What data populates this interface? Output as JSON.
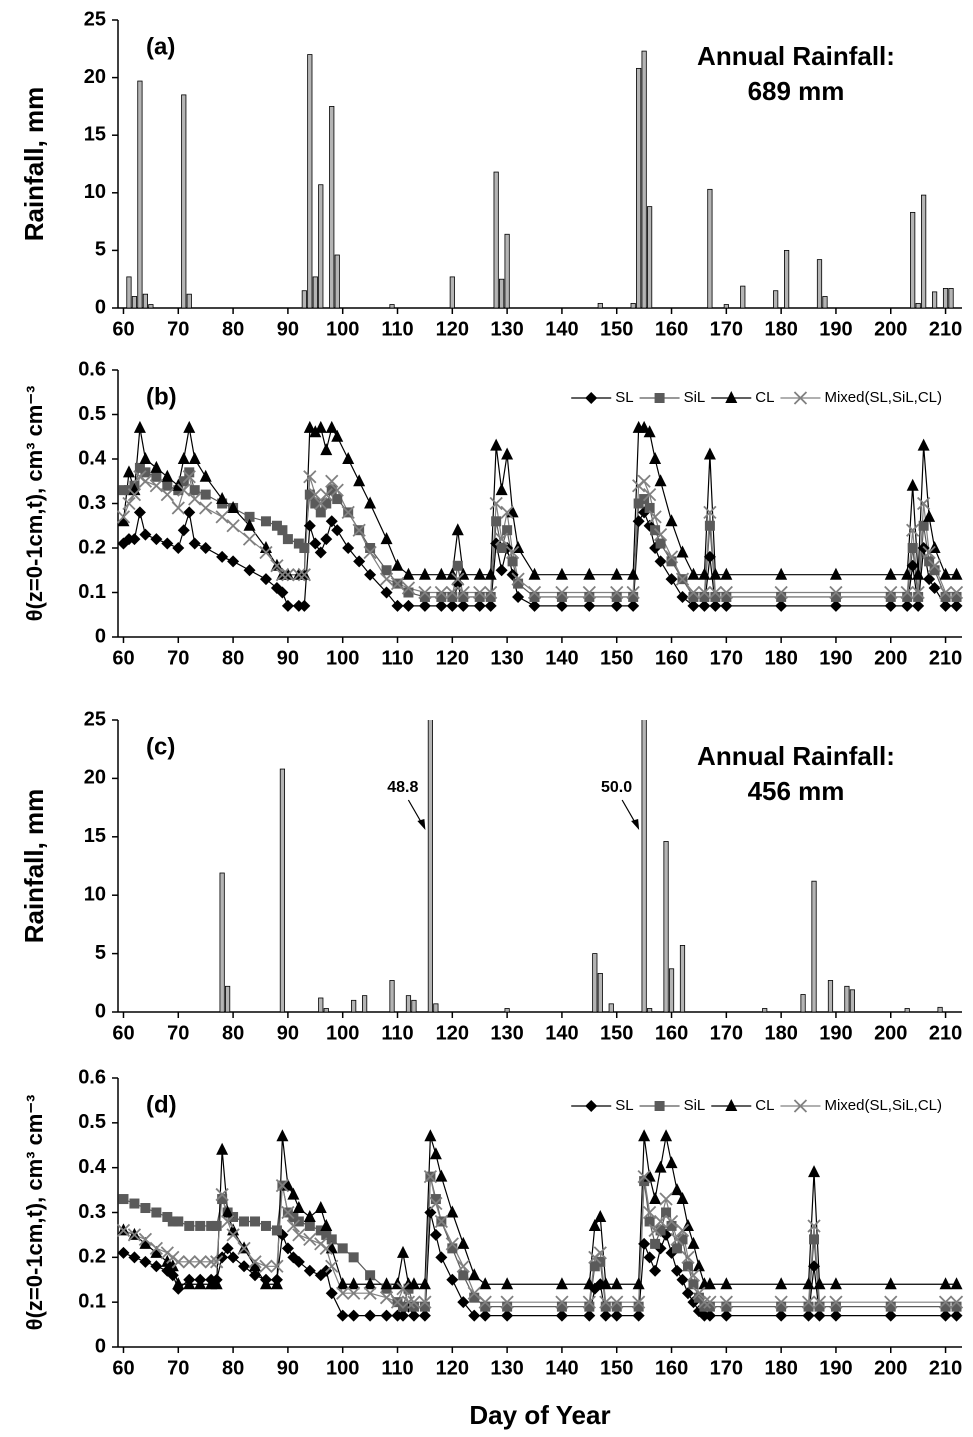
{
  "chart_data": [
    {
      "type": "bar",
      "panel_label": "(a)",
      "ylabel": "Rainfall, mm",
      "annotation": [
        "Annual Rainfall:",
        "689 mm"
      ],
      "x": [
        61,
        62,
        63,
        64,
        65,
        71,
        72,
        93,
        94,
        95,
        96,
        98,
        99,
        109,
        120,
        128,
        129,
        130,
        147,
        153,
        154,
        155,
        156,
        167,
        170,
        173,
        179,
        181,
        187,
        188,
        204,
        205,
        206,
        208,
        210,
        211
      ],
      "values": [
        2.7,
        1.0,
        19.7,
        1.2,
        0.3,
        18.5,
        1.2,
        1.5,
        22,
        2.7,
        10.7,
        17.5,
        4.6,
        0.3,
        2.7,
        11.8,
        2.5,
        6.4,
        0.4,
        0.4,
        20.8,
        22.3,
        8.8,
        10.3,
        0.3,
        1.9,
        1.5,
        5.0,
        4.2,
        1.0,
        8.3,
        0.4,
        9.8,
        1.4,
        1.7,
        1.7
      ],
      "color": "#b4b4b4",
      "xlim": [
        59,
        213
      ],
      "xticks": [
        60,
        70,
        80,
        90,
        100,
        110,
        120,
        130,
        140,
        150,
        160,
        170,
        180,
        190,
        200,
        210
      ],
      "ylim": [
        0,
        25
      ],
      "yticks": [
        0,
        5,
        10,
        15,
        20,
        25
      ]
    },
    {
      "type": "line",
      "panel_label": "(b)",
      "ylabel": "θ(z=0-1cm,t), cm³ cm⁻³",
      "legend": "upper right",
      "x": [
        60,
        61,
        62,
        63,
        64,
        66,
        68,
        70,
        71,
        72,
        73,
        75,
        78,
        80,
        83,
        86,
        88,
        89,
        90,
        92,
        93,
        94,
        95,
        96,
        97,
        98,
        99,
        101,
        103,
        105,
        108,
        110,
        112,
        115,
        118,
        120,
        121,
        122,
        125,
        127,
        128,
        129,
        130,
        131,
        132,
        135,
        140,
        145,
        150,
        153,
        154,
        155,
        156,
        157,
        158,
        160,
        162,
        164,
        166,
        167,
        168,
        170,
        180,
        190,
        200,
        203,
        204,
        205,
        206,
        207,
        208,
        210,
        212
      ],
      "series": [
        {
          "name": "SL",
          "color": "#000000",
          "marker": "diamond",
          "values": [
            0.21,
            0.22,
            0.22,
            0.28,
            0.23,
            0.22,
            0.21,
            0.2,
            0.24,
            0.28,
            0.21,
            0.2,
            0.18,
            0.17,
            0.15,
            0.13,
            0.11,
            0.1,
            0.07,
            0.07,
            0.07,
            0.25,
            0.21,
            0.19,
            0.22,
            0.26,
            0.24,
            0.2,
            0.17,
            0.14,
            0.1,
            0.07,
            0.07,
            0.07,
            0.07,
            0.07,
            0.12,
            0.07,
            0.07,
            0.07,
            0.21,
            0.15,
            0.2,
            0.14,
            0.09,
            0.07,
            0.07,
            0.07,
            0.07,
            0.07,
            0.26,
            0.28,
            0.25,
            0.2,
            0.17,
            0.13,
            0.09,
            0.07,
            0.07,
            0.18,
            0.07,
            0.07,
            0.07,
            0.07,
            0.07,
            0.07,
            0.16,
            0.07,
            0.2,
            0.13,
            0.11,
            0.07,
            0.07
          ]
        },
        {
          "name": "SiL",
          "color": "#5a5a5a",
          "marker": "square",
          "values": [
            0.33,
            0.33,
            0.34,
            0.38,
            0.37,
            0.36,
            0.34,
            0.33,
            0.35,
            0.37,
            0.33,
            0.32,
            0.3,
            0.29,
            0.27,
            0.26,
            0.25,
            0.24,
            0.22,
            0.21,
            0.2,
            0.32,
            0.3,
            0.28,
            0.3,
            0.33,
            0.31,
            0.28,
            0.24,
            0.2,
            0.15,
            0.12,
            0.1,
            0.09,
            0.09,
            0.09,
            0.16,
            0.09,
            0.09,
            0.09,
            0.26,
            0.2,
            0.24,
            0.17,
            0.12,
            0.09,
            0.09,
            0.09,
            0.09,
            0.09,
            0.3,
            0.31,
            0.29,
            0.24,
            0.21,
            0.17,
            0.13,
            0.09,
            0.09,
            0.25,
            0.09,
            0.09,
            0.09,
            0.09,
            0.09,
            0.09,
            0.2,
            0.09,
            0.25,
            0.17,
            0.15,
            0.09,
            0.09
          ]
        },
        {
          "name": "CL",
          "color": "#000000",
          "marker": "triangle",
          "values": [
            0.26,
            0.37,
            0.33,
            0.47,
            0.4,
            0.38,
            0.36,
            0.34,
            0.4,
            0.47,
            0.4,
            0.36,
            0.31,
            0.29,
            0.25,
            0.2,
            0.16,
            0.14,
            0.14,
            0.14,
            0.14,
            0.47,
            0.46,
            0.47,
            0.42,
            0.47,
            0.45,
            0.4,
            0.35,
            0.3,
            0.22,
            0.16,
            0.14,
            0.14,
            0.14,
            0.14,
            0.24,
            0.14,
            0.14,
            0.14,
            0.43,
            0.33,
            0.41,
            0.28,
            0.2,
            0.14,
            0.14,
            0.14,
            0.14,
            0.14,
            0.47,
            0.47,
            0.46,
            0.4,
            0.35,
            0.26,
            0.19,
            0.14,
            0.14,
            0.41,
            0.14,
            0.14,
            0.14,
            0.14,
            0.14,
            0.14,
            0.34,
            0.14,
            0.43,
            0.27,
            0.2,
            0.14,
            0.14
          ]
        },
        {
          "name": "Mixed(SL,SiL,CL)",
          "color": "#808080",
          "marker": "cross",
          "values": [
            0.27,
            0.3,
            0.32,
            0.36,
            0.35,
            0.34,
            0.32,
            0.29,
            0.33,
            0.36,
            0.31,
            0.29,
            0.27,
            0.25,
            0.22,
            0.19,
            0.16,
            0.14,
            0.14,
            0.14,
            0.14,
            0.36,
            0.32,
            0.3,
            0.32,
            0.35,
            0.33,
            0.28,
            0.24,
            0.19,
            0.13,
            0.12,
            0.11,
            0.1,
            0.1,
            0.1,
            0.13,
            0.1,
            0.1,
            0.1,
            0.3,
            0.22,
            0.28,
            0.19,
            0.13,
            0.1,
            0.1,
            0.1,
            0.1,
            0.1,
            0.34,
            0.35,
            0.32,
            0.27,
            0.23,
            0.18,
            0.13,
            0.1,
            0.1,
            0.28,
            0.1,
            0.1,
            0.1,
            0.1,
            0.1,
            0.1,
            0.24,
            0.1,
            0.3,
            0.19,
            0.16,
            0.1,
            0.1
          ]
        }
      ],
      "xlim": [
        59,
        213
      ],
      "xticks": [
        60,
        70,
        80,
        90,
        100,
        110,
        120,
        130,
        140,
        150,
        160,
        170,
        180,
        190,
        200,
        210
      ],
      "ylim": [
        0,
        0.6
      ],
      "yticks": [
        0,
        0.1,
        0.2,
        0.3,
        0.4,
        0.5,
        0.6
      ]
    },
    {
      "type": "bar",
      "panel_label": "(c)",
      "ylabel": "Rainfall, mm",
      "annotation": [
        "Annual Rainfall:",
        "456 mm"
      ],
      "x": [
        78,
        79,
        89,
        96,
        97,
        102,
        104,
        109,
        112,
        113,
        116,
        117,
        130,
        146,
        147,
        149,
        155,
        156,
        159,
        160,
        162,
        177,
        184,
        186,
        189,
        192,
        193,
        203,
        209
      ],
      "values": [
        11.9,
        2.2,
        20.8,
        1.2,
        0.3,
        1.0,
        1.4,
        2.7,
        1.4,
        1.0,
        48.8,
        0.7,
        0.3,
        5.0,
        3.3,
        0.7,
        50.0,
        0.3,
        14.6,
        3.7,
        5.7,
        0.3,
        1.5,
        11.2,
        2.7,
        2.2,
        1.9,
        0.3,
        0.4
      ],
      "value_labels": [
        null,
        null,
        null,
        null,
        null,
        null,
        null,
        null,
        null,
        null,
        "48.8",
        null,
        null,
        null,
        null,
        null,
        "50.0",
        null,
        null,
        null,
        null,
        null,
        null,
        null,
        null,
        null,
        null,
        null,
        null
      ],
      "color": "#b4b4b4",
      "xlim": [
        59,
        213
      ],
      "xticks": [
        60,
        70,
        80,
        90,
        100,
        110,
        120,
        130,
        140,
        150,
        160,
        170,
        180,
        190,
        200,
        210
      ],
      "ylim": [
        0,
        25
      ],
      "yticks": [
        0,
        5,
        10,
        15,
        20,
        25
      ]
    },
    {
      "type": "line",
      "panel_label": "(d)",
      "ylabel": "θ(z=0-1cm,t), cm³ cm⁻³",
      "xlabel": "Day of Year",
      "legend": "upper right",
      "x": [
        60,
        62,
        64,
        66,
        68,
        69,
        70,
        72,
        74,
        76,
        77,
        78,
        79,
        80,
        82,
        84,
        86,
        88,
        89,
        90,
        91,
        92,
        94,
        96,
        97,
        98,
        100,
        102,
        105,
        108,
        110,
        111,
        112,
        113,
        115,
        116,
        117,
        118,
        120,
        122,
        124,
        126,
        130,
        140,
        145,
        146,
        147,
        148,
        150,
        154,
        155,
        156,
        157,
        158,
        159,
        160,
        161,
        162,
        163,
        164,
        165,
        166,
        167,
        170,
        180,
        185,
        186,
        187,
        190,
        200,
        210,
        212
      ],
      "series": [
        {
          "name": "SL",
          "color": "#000000",
          "marker": "diamond",
          "values": [
            0.21,
            0.2,
            0.19,
            0.18,
            0.17,
            0.16,
            0.13,
            0.15,
            0.15,
            0.15,
            0.15,
            0.2,
            0.22,
            0.2,
            0.18,
            0.16,
            0.15,
            0.15,
            0.25,
            0.22,
            0.2,
            0.19,
            0.17,
            0.16,
            0.17,
            0.12,
            0.07,
            0.07,
            0.07,
            0.07,
            0.07,
            0.07,
            0.09,
            0.07,
            0.07,
            0.3,
            0.25,
            0.2,
            0.15,
            0.1,
            0.07,
            0.07,
            0.07,
            0.07,
            0.07,
            0.13,
            0.14,
            0.07,
            0.07,
            0.07,
            0.23,
            0.2,
            0.17,
            0.22,
            0.25,
            0.21,
            0.17,
            0.15,
            0.12,
            0.1,
            0.08,
            0.07,
            0.07,
            0.07,
            0.07,
            0.07,
            0.18,
            0.07,
            0.07,
            0.07,
            0.07,
            0.07
          ]
        },
        {
          "name": "SiL",
          "color": "#5a5a5a",
          "marker": "square",
          "values": [
            0.33,
            0.32,
            0.31,
            0.3,
            0.29,
            0.28,
            0.28,
            0.27,
            0.27,
            0.27,
            0.27,
            0.33,
            0.3,
            0.29,
            0.28,
            0.28,
            0.27,
            0.26,
            0.36,
            0.3,
            0.29,
            0.28,
            0.27,
            0.26,
            0.25,
            0.24,
            0.22,
            0.2,
            0.16,
            0.13,
            0.1,
            0.09,
            0.13,
            0.09,
            0.09,
            0.38,
            0.33,
            0.28,
            0.22,
            0.16,
            0.11,
            0.09,
            0.09,
            0.09,
            0.09,
            0.18,
            0.19,
            0.09,
            0.09,
            0.09,
            0.37,
            0.28,
            0.23,
            0.26,
            0.3,
            0.27,
            0.22,
            0.24,
            0.18,
            0.14,
            0.11,
            0.09,
            0.09,
            0.09,
            0.09,
            0.09,
            0.24,
            0.09,
            0.09,
            0.09,
            0.09,
            0.09
          ]
        },
        {
          "name": "CL",
          "color": "#000000",
          "marker": "triangle",
          "values": [
            0.26,
            0.25,
            0.23,
            0.21,
            0.19,
            0.18,
            0.14,
            0.14,
            0.14,
            0.14,
            0.14,
            0.44,
            0.3,
            0.26,
            0.22,
            0.18,
            0.14,
            0.14,
            0.47,
            0.36,
            0.34,
            0.31,
            0.29,
            0.31,
            0.27,
            0.22,
            0.14,
            0.14,
            0.14,
            0.14,
            0.14,
            0.21,
            0.14,
            0.14,
            0.14,
            0.47,
            0.43,
            0.38,
            0.3,
            0.23,
            0.16,
            0.14,
            0.14,
            0.14,
            0.14,
            0.27,
            0.29,
            0.14,
            0.14,
            0.14,
            0.47,
            0.38,
            0.33,
            0.4,
            0.47,
            0.41,
            0.35,
            0.33,
            0.27,
            0.23,
            0.18,
            0.14,
            0.14,
            0.14,
            0.14,
            0.14,
            0.39,
            0.14,
            0.14,
            0.14,
            0.14,
            0.14
          ]
        },
        {
          "name": "Mixed(SL,SiL,CL)",
          "color": "#808080",
          "marker": "cross",
          "values": [
            0.26,
            0.25,
            0.24,
            0.22,
            0.21,
            0.2,
            0.19,
            0.19,
            0.19,
            0.19,
            0.19,
            0.34,
            0.28,
            0.25,
            0.22,
            0.19,
            0.18,
            0.18,
            0.36,
            0.3,
            0.27,
            0.25,
            0.24,
            0.23,
            0.22,
            0.18,
            0.12,
            0.12,
            0.12,
            0.11,
            0.1,
            0.13,
            0.1,
            0.1,
            0.1,
            0.38,
            0.32,
            0.28,
            0.23,
            0.18,
            0.12,
            0.1,
            0.1,
            0.1,
            0.1,
            0.2,
            0.21,
            0.1,
            0.1,
            0.1,
            0.38,
            0.3,
            0.26,
            0.28,
            0.33,
            0.28,
            0.24,
            0.26,
            0.2,
            0.16,
            0.12,
            0.1,
            0.1,
            0.1,
            0.1,
            0.1,
            0.27,
            0.1,
            0.1,
            0.1,
            0.1,
            0.1
          ]
        }
      ],
      "xlim": [
        59,
        213
      ],
      "xticks": [
        60,
        70,
        80,
        90,
        100,
        110,
        120,
        130,
        140,
        150,
        160,
        170,
        180,
        190,
        200,
        210
      ],
      "ylim": [
        0,
        0.6
      ],
      "yticks": [
        0,
        0.1,
        0.2,
        0.3,
        0.4,
        0.5,
        0.6
      ]
    }
  ]
}
